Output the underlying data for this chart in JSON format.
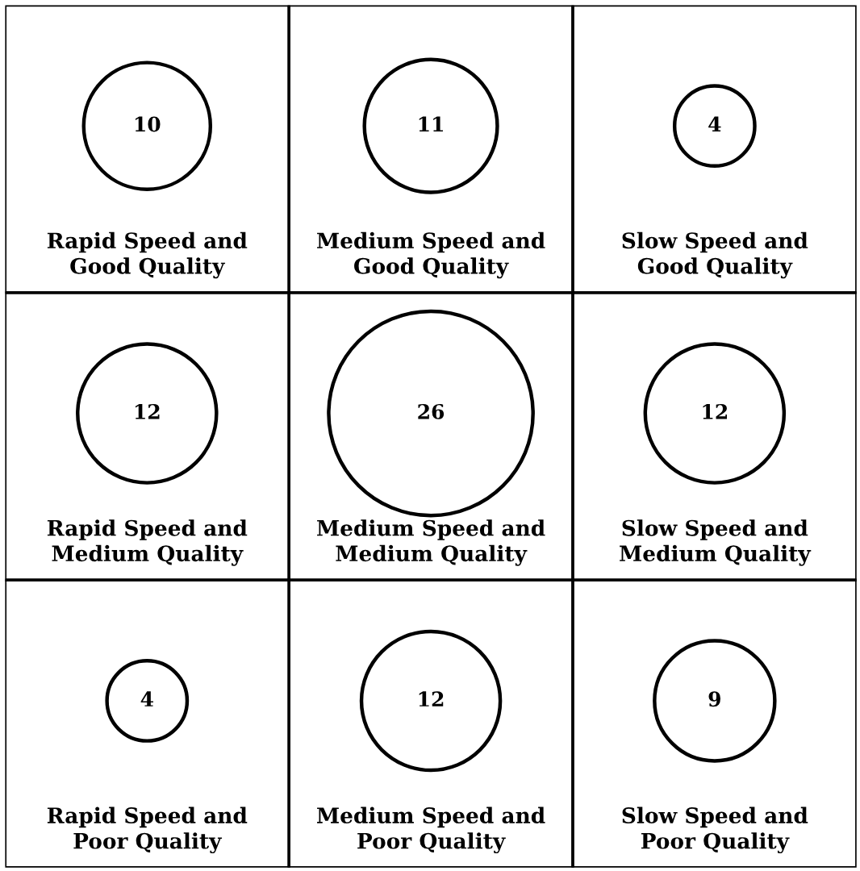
{
  "chart_data": {
    "type": "other",
    "categories": [
      "Rapid Speed and\nGood Quality",
      "Medium Speed and\nGood Quality",
      "Slow Speed and\nGood Quality",
      "Rapid Speed and\nMedium Quality",
      "Medium Speed and\nMedium Quality",
      "Slow Speed and\nMedium Quality",
      "Rapid Speed and\nPoor Quality",
      "Medium Speed and\nPoor Quality",
      "Slow Speed and\nPoor Quality"
    ],
    "values": [
      10,
      11,
      4,
      12,
      26,
      12,
      4,
      12,
      9
    ],
    "data_labels": true
  }
}
